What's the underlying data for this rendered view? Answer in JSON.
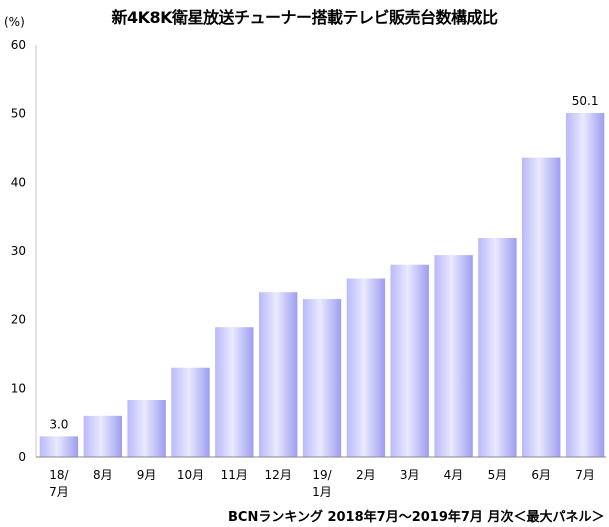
{
  "chart_data": {
    "type": "bar",
    "title": "新4K8K衛星放送チューナー搭載テレビ販売台数構成比",
    "ylabel": "(%)",
    "xlabel": "",
    "ylim": [
      0,
      60
    ],
    "yticks": [
      0,
      10,
      20,
      30,
      40,
      50,
      60
    ],
    "grid": false,
    "categories": [
      [
        "18/",
        "7月"
      ],
      [
        "8月"
      ],
      [
        "9月"
      ],
      [
        "10月"
      ],
      [
        "11月"
      ],
      [
        "12月"
      ],
      [
        "19/",
        "1月"
      ],
      [
        "2月"
      ],
      [
        "3月"
      ],
      [
        "4月"
      ],
      [
        "5月"
      ],
      [
        "6月"
      ],
      [
        "7月"
      ]
    ],
    "values": [
      3.0,
      6.0,
      8.3,
      13.0,
      18.9,
      24.0,
      23.0,
      26.0,
      28.0,
      29.4,
      31.9,
      43.6,
      50.1
    ],
    "data_labels": [
      {
        "index": 0,
        "text": "3.0"
      },
      {
        "index": 12,
        "text": "50.1"
      }
    ],
    "bar_color": "#a7a7f5"
  },
  "source_note": "BCNランキング 2018年7月～2019年7月 月次＜最大パネル＞"
}
